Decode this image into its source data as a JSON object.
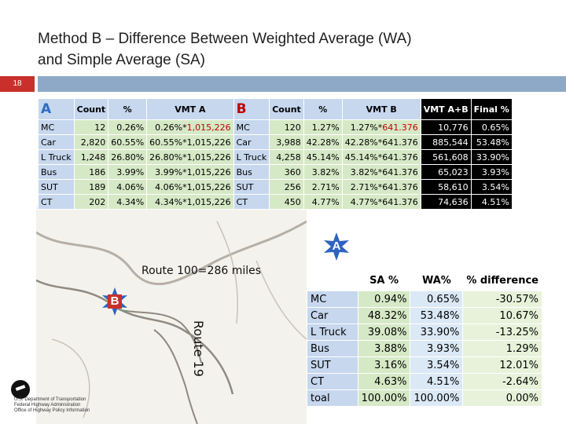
{
  "title": {
    "line1": "Method B – Difference Between Weighted Average (WA)",
    "line2": "and Simple Average (SA)"
  },
  "slide_number": "18",
  "colors": {
    "accent_red": "#c9302c",
    "bar_blue": "#8ea9c8",
    "header_blue": "#c6d7ee",
    "cell_green": "#d6e9c6"
  },
  "table1": {
    "headers": {
      "a_letter": "A",
      "a_count": "Count",
      "a_pct": "%",
      "a_vmt": "VMT A",
      "b_letter": "B",
      "b_count": "Count",
      "b_pct": "%",
      "b_vmt": "VMT B",
      "vmt_ab": "VMT A+B",
      "final_pct": "Final %"
    },
    "rows": [
      {
        "cat": "MC",
        "a_count": "12",
        "a_pct": "0.26%",
        "a_vmt_pre": "0.26%*",
        "a_vmt_val": "1,015,226",
        "a_vmt_red": true,
        "b_cat": "MC",
        "b_count": "120",
        "b_pct": "1.27%",
        "b_vmt_pre": "1.27%*",
        "b_vmt_val": "641.376",
        "b_vmt_red": true,
        "vmt_ab": "10,776",
        "final": "0.65%"
      },
      {
        "cat": "Car",
        "a_count": "2,820",
        "a_pct": "60.55%",
        "a_vmt_pre": "60.55%*",
        "a_vmt_val": "1,015,226",
        "a_vmt_red": false,
        "b_cat": "Car",
        "b_count": "3,988",
        "b_pct": "42.28%",
        "b_vmt_pre": "42.28%*",
        "b_vmt_val": "641.376",
        "b_vmt_red": false,
        "vmt_ab": "885,544",
        "final": "53.48%"
      },
      {
        "cat": "L Truck",
        "a_count": "1,248",
        "a_pct": "26.80%",
        "a_vmt_pre": "26.80%*",
        "a_vmt_val": "1,015,226",
        "a_vmt_red": false,
        "b_cat": "L Truck",
        "b_count": "4,258",
        "b_pct": "45.14%",
        "b_vmt_pre": "45.14%*",
        "b_vmt_val": "641.376",
        "b_vmt_red": false,
        "vmt_ab": "561,608",
        "final": "33.90%"
      },
      {
        "cat": "Bus",
        "a_count": "186",
        "a_pct": "3.99%",
        "a_vmt_pre": "3.99%*",
        "a_vmt_val": "1,015,226",
        "a_vmt_red": false,
        "b_cat": "Bus",
        "b_count": "360",
        "b_pct": "3.82%",
        "b_vmt_pre": "3.82%*",
        "b_vmt_val": "641.376",
        "b_vmt_red": false,
        "vmt_ab": "65,023",
        "final": "3.93%"
      },
      {
        "cat": "SUT",
        "a_count": "189",
        "a_pct": "4.06%",
        "a_vmt_pre": "4.06%*",
        "a_vmt_val": "1,015,226",
        "a_vmt_red": false,
        "b_cat": "SUT",
        "b_count": "256",
        "b_pct": "2.71%",
        "b_vmt_pre": "2.71%*",
        "b_vmt_val": "641.376",
        "b_vmt_red": false,
        "vmt_ab": "58,610",
        "final": "3.54%"
      },
      {
        "cat": "CT",
        "a_count": "202",
        "a_pct": "4.34%",
        "a_vmt_pre": "4.34%*",
        "a_vmt_val": "1,015,226",
        "a_vmt_red": false,
        "b_cat": "CT",
        "b_count": "450",
        "b_pct": "4.77%",
        "b_vmt_pre": "4.77%*",
        "b_vmt_val": "641.376",
        "b_vmt_red": false,
        "vmt_ab": "74,636",
        "final": "4.51%"
      }
    ]
  },
  "map": {
    "route100_label": "Route 100=286 miles",
    "route19_label": "Route 19",
    "marker_a": "A",
    "marker_b": "B"
  },
  "table2": {
    "headers": {
      "cat": "",
      "sa": "SA %",
      "wa": "WA%",
      "diff": "% difference"
    },
    "rows": [
      {
        "cat": "MC",
        "sa": "0.94%",
        "wa": "0.65%",
        "diff": "-30.57%"
      },
      {
        "cat": "Car",
        "sa": "48.32%",
        "wa": "53.48%",
        "diff": "10.67%"
      },
      {
        "cat": "L Truck",
        "sa": "39.08%",
        "wa": "33.90%",
        "diff": "-13.25%"
      },
      {
        "cat": "Bus",
        "sa": "3.88%",
        "wa": "3.93%",
        "diff": "1.29%"
      },
      {
        "cat": "SUT",
        "sa": "3.16%",
        "wa": "3.54%",
        "diff": "12.01%"
      },
      {
        "cat": "CT",
        "sa": "4.63%",
        "wa": "4.51%",
        "diff": "-2.64%"
      },
      {
        "cat": "toal",
        "sa": "100.00%",
        "wa": "100.00%",
        "diff": "0.00%"
      }
    ]
  },
  "logo": {
    "line1": "U.S. Department of Transportation",
    "line2": "Federal Highway Administration",
    "line3": "Office of Highway Policy Information"
  }
}
